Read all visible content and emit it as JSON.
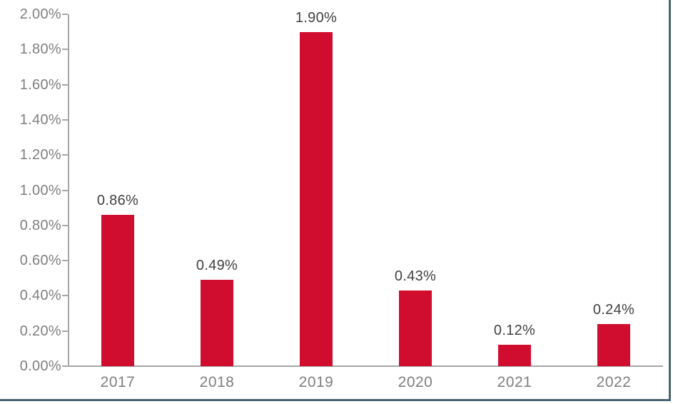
{
  "chart_data": {
    "type": "bar",
    "title": "",
    "xlabel": "",
    "ylabel": "",
    "categories": [
      "2017",
      "2018",
      "2019",
      "2020",
      "2021",
      "2022"
    ],
    "values": [
      0.86,
      0.49,
      1.9,
      0.43,
      0.12,
      0.24
    ],
    "data_labels": [
      "0.86%",
      "0.49%",
      "1.90%",
      "0.43%",
      "0.12%",
      "0.24%"
    ],
    "y_ticks": [
      "0.00%",
      "0.20%",
      "0.40%",
      "0.60%",
      "0.80%",
      "1.00%",
      "1.20%",
      "1.40%",
      "1.60%",
      "1.80%",
      "2.00%"
    ],
    "ylim": [
      0,
      2.0
    ],
    "grid": false,
    "legend": "none"
  },
  "colors": {
    "bar": "#d00c2f",
    "axis_line": "#a6a6a6",
    "tick_label": "#7f7f7f",
    "data_label": "#414141",
    "frame_border": "#4a6370",
    "background": "#ffffff"
  }
}
